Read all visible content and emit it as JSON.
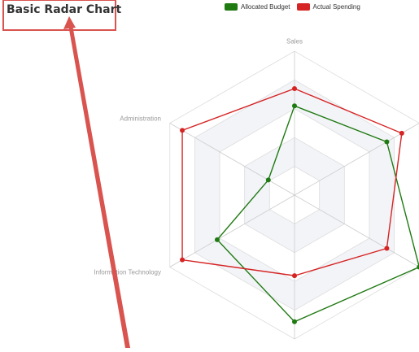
{
  "chart_data": {
    "type": "radar",
    "title": "Basic Radar Chart",
    "indicators": [
      "Sales",
      "",
      "",
      "",
      "Information Technology",
      "Administration"
    ],
    "series": [
      {
        "name": "Allocated Budget",
        "color": "#1f7a12",
        "values": [
          0.62,
          0.74,
          1.0,
          0.88,
          0.62,
          0.21
        ]
      },
      {
        "name": "Actual Spending",
        "color": "#d62424",
        "values": [
          0.74,
          0.86,
          0.74,
          0.56,
          0.9,
          0.9
        ]
      }
    ],
    "rings": 5,
    "legend_position": "top"
  },
  "annotation": {
    "color": "#d9534f"
  }
}
